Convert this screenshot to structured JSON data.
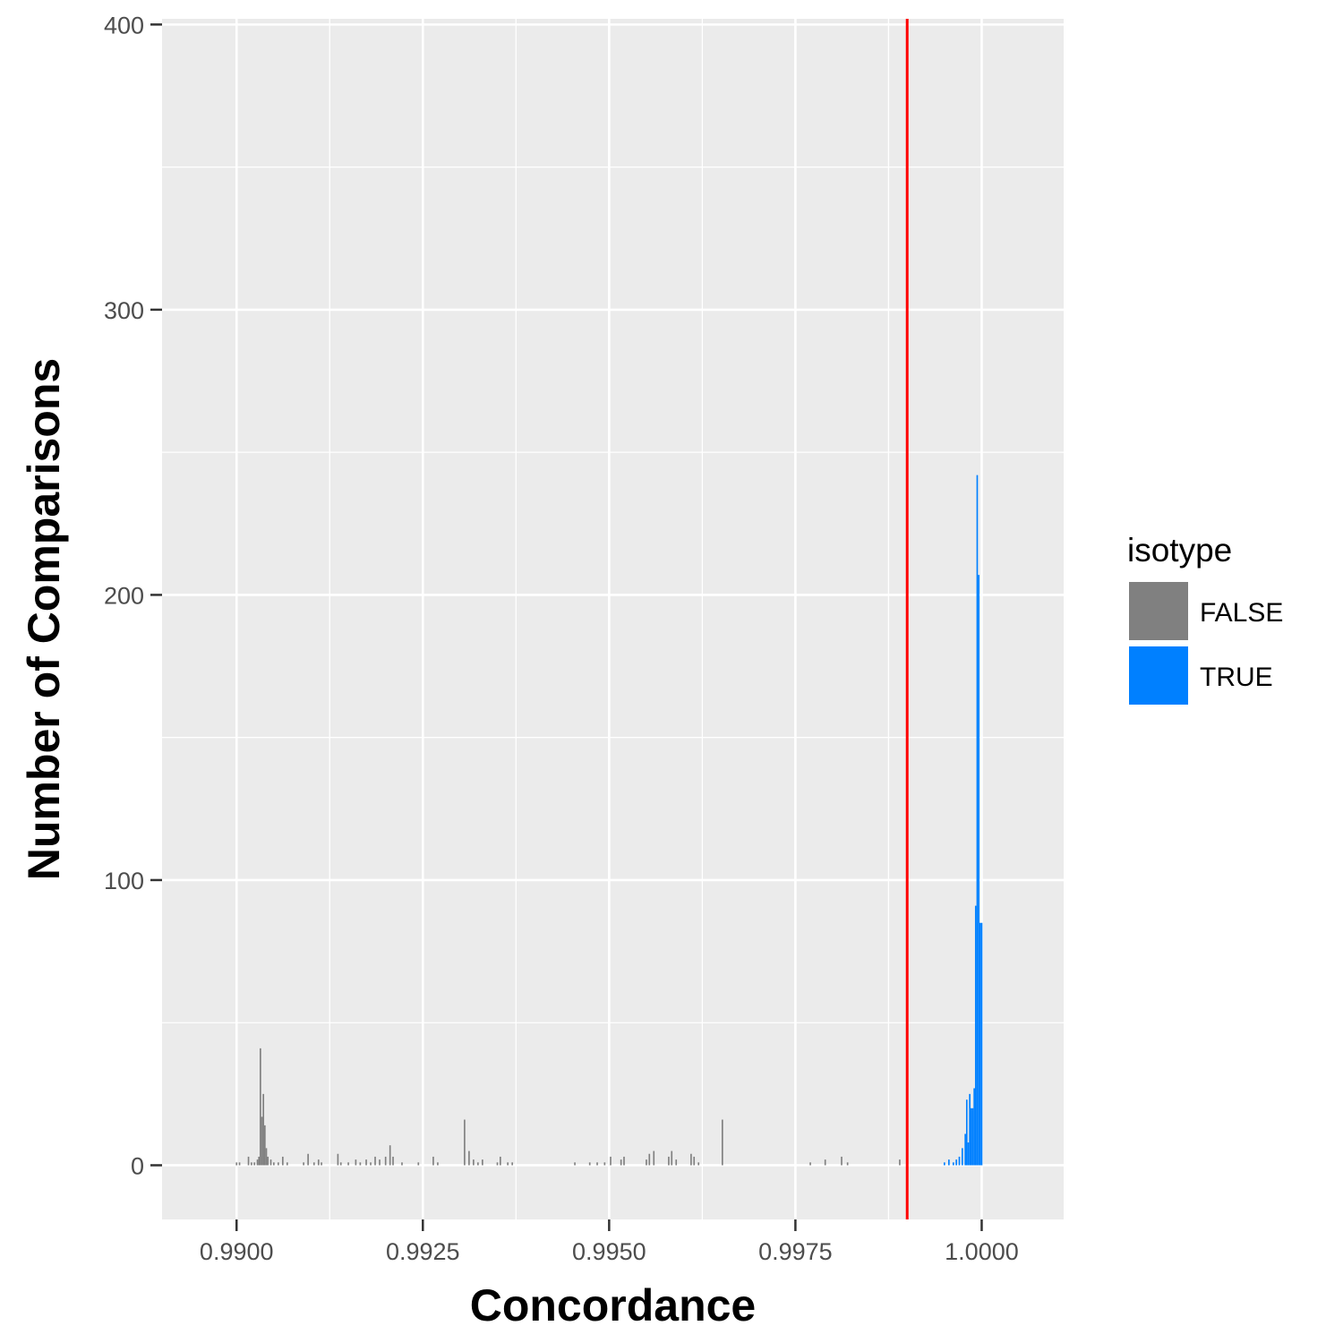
{
  "chart_data": {
    "type": "bar",
    "title": "",
    "xlabel": "Concordance",
    "ylabel": "Number of Comparisons",
    "xlim": [
      0.989,
      1.0011
    ],
    "ylim": [
      -19,
      402
    ],
    "x_ticks": [
      0.99,
      0.9925,
      0.995,
      0.9975,
      1.0
    ],
    "x_tick_labels": [
      "0.9900",
      "0.9925",
      "0.9950",
      "0.9975",
      "1.0000"
    ],
    "y_ticks": [
      0,
      100,
      200,
      300,
      400
    ],
    "y_tick_labels": [
      "0",
      "100",
      "200",
      "300",
      "400"
    ],
    "grid": true,
    "legend": {
      "title": "isotype",
      "position": "right",
      "entries": [
        {
          "label": "FALSE",
          "color": "#808080"
        },
        {
          "label": "TRUE",
          "color": "#0080ff"
        }
      ]
    },
    "reference_line": {
      "x": 0.999,
      "color": "#ff0000"
    },
    "bin_width": 2e-05,
    "series": [
      {
        "name": "FALSE",
        "color": "#808080",
        "points": [
          [
            0.99,
            1
          ],
          [
            0.99004,
            1
          ],
          [
            0.99016,
            3
          ],
          [
            0.9902,
            1
          ],
          [
            0.99024,
            1
          ],
          [
            0.99028,
            2
          ],
          [
            0.9903,
            3
          ],
          [
            0.99032,
            41
          ],
          [
            0.99034,
            17
          ],
          [
            0.99036,
            25
          ],
          [
            0.99038,
            14
          ],
          [
            0.9904,
            6
          ],
          [
            0.99042,
            3
          ],
          [
            0.99046,
            2
          ],
          [
            0.9905,
            1
          ],
          [
            0.99056,
            1
          ],
          [
            0.99062,
            3
          ],
          [
            0.99068,
            1
          ],
          [
            0.9909,
            1
          ],
          [
            0.99096,
            4
          ],
          [
            0.99104,
            1
          ],
          [
            0.9911,
            2
          ],
          [
            0.99114,
            1
          ],
          [
            0.99136,
            4
          ],
          [
            0.9914,
            1
          ],
          [
            0.9915,
            1
          ],
          [
            0.9916,
            2
          ],
          [
            0.99166,
            1
          ],
          [
            0.99174,
            2
          ],
          [
            0.9918,
            1
          ],
          [
            0.99186,
            3
          ],
          [
            0.99192,
            2
          ],
          [
            0.992,
            3
          ],
          [
            0.99206,
            7
          ],
          [
            0.9921,
            3
          ],
          [
            0.99222,
            1
          ],
          [
            0.99244,
            1
          ],
          [
            0.99264,
            3
          ],
          [
            0.9927,
            1
          ],
          [
            0.99306,
            16
          ],
          [
            0.99312,
            5
          ],
          [
            0.99318,
            2
          ],
          [
            0.99324,
            1
          ],
          [
            0.9933,
            2
          ],
          [
            0.9935,
            1
          ],
          [
            0.99354,
            3
          ],
          [
            0.99364,
            1
          ],
          [
            0.9937,
            1
          ],
          [
            0.99454,
            1
          ],
          [
            0.99474,
            1
          ],
          [
            0.99484,
            1
          ],
          [
            0.99494,
            1
          ],
          [
            0.99502,
            3
          ],
          [
            0.99516,
            2
          ],
          [
            0.9952,
            3
          ],
          [
            0.9955,
            2
          ],
          [
            0.99554,
            4
          ],
          [
            0.9956,
            5
          ],
          [
            0.9958,
            3
          ],
          [
            0.99584,
            5
          ],
          [
            0.9959,
            2
          ],
          [
            0.9961,
            4
          ],
          [
            0.99614,
            3
          ],
          [
            0.9962,
            1
          ],
          [
            0.99652,
            16
          ],
          [
            0.9977,
            1
          ],
          [
            0.9979,
            2
          ],
          [
            0.99812,
            3
          ],
          [
            0.9982,
            1
          ],
          [
            0.9989,
            2
          ]
        ]
      },
      {
        "name": "TRUE",
        "color": "#0080ff",
        "points": [
          [
            0.9995,
            1
          ],
          [
            0.99956,
            2
          ],
          [
            0.99962,
            1
          ],
          [
            0.99966,
            2
          ],
          [
            0.9997,
            3
          ],
          [
            0.99974,
            6
          ],
          [
            0.99978,
            11
          ],
          [
            0.9998,
            23
          ],
          [
            0.99982,
            8
          ],
          [
            0.99984,
            25
          ],
          [
            0.99986,
            20
          ],
          [
            0.99988,
            20
          ],
          [
            0.9999,
            27
          ],
          [
            0.99992,
            91
          ],
          [
            0.99994,
            242
          ],
          [
            0.99996,
            207
          ],
          [
            0.99998,
            85
          ],
          [
            1.0,
            85
          ]
        ]
      }
    ]
  }
}
